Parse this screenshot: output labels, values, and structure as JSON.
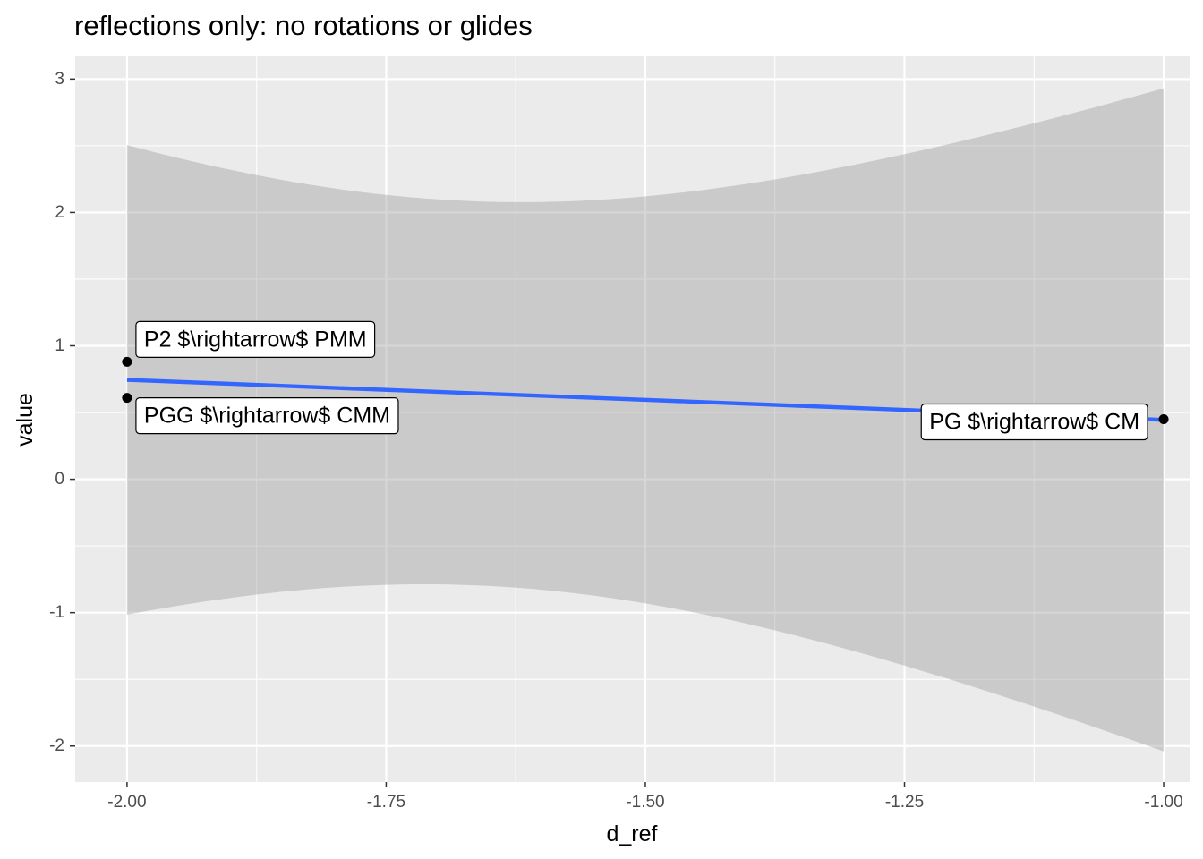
{
  "chart_data": {
    "type": "scatter",
    "title": "reflections only: no rotations or glides",
    "xlabel": "d_ref",
    "ylabel": "value",
    "xlim": [
      -2.05,
      -0.975
    ],
    "ylim": [
      -2.27,
      3.17
    ],
    "x_ticks": [
      -2.0,
      -1.75,
      -1.5,
      -1.25,
      -1.0
    ],
    "x_tick_labels": [
      "-2.00",
      "-1.75",
      "-1.50",
      "-1.25",
      "-1.00"
    ],
    "y_ticks": [
      -2,
      -1,
      0,
      1,
      2,
      3
    ],
    "y_tick_labels": [
      "-2",
      "-1",
      "0",
      "1",
      "2",
      "3"
    ],
    "grid": true,
    "legend": "none",
    "points": [
      {
        "x": -2.0,
        "y": 0.88,
        "label": "P2 $\\rightarrow$ PMM"
      },
      {
        "x": -2.0,
        "y": 0.61,
        "label": "PGG $\\rightarrow$ CMM"
      },
      {
        "x": -1.0,
        "y": 0.45,
        "label": "PG $\\rightarrow$ CM"
      }
    ],
    "smooth": {
      "method": "lm",
      "color": "#3366ff",
      "band_color": "#999999",
      "x": [
        -2.0,
        -1.0
      ],
      "fit": [
        0.745,
        0.445
      ],
      "ci_upper": [
        2.5,
        2.93
      ],
      "ci_lower": [
        -1.02,
        -2.04
      ]
    },
    "colors": {
      "panel": "#ebebeb",
      "grid": "#ffffff",
      "point": "#000000",
      "line": "#3366ff"
    }
  }
}
